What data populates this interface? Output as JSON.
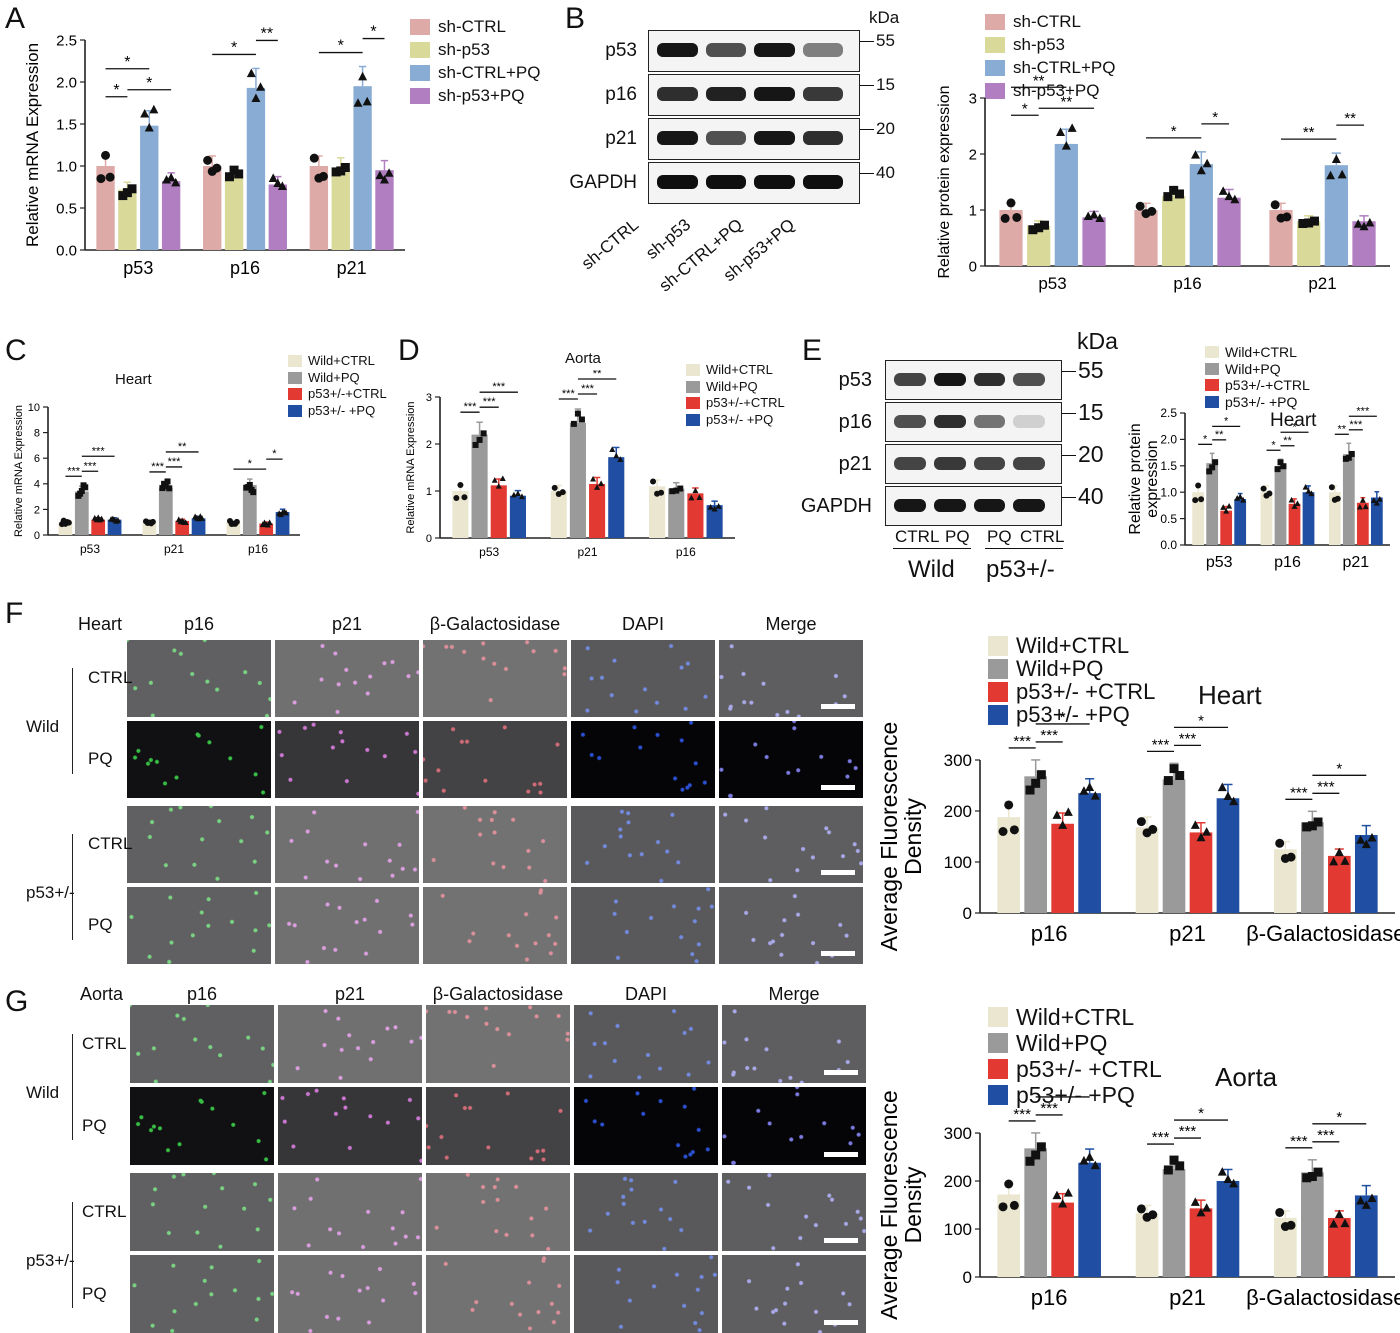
{
  "colors": {
    "pink": "#deaaa8",
    "olive": "#d9d99a",
    "blue": "#88acd4",
    "purple": "#b27ec2",
    "cream": "#eae6cf",
    "gray": "#9a9a9a",
    "red": "#e23a33",
    "navy": "#1f4ea2"
  },
  "panels": {
    "A": "A",
    "B": "B",
    "C": "C",
    "D": "D",
    "E": "E",
    "F": "F",
    "G": "G"
  },
  "blot_B": {
    "kda": "kDa",
    "rows": [
      {
        "label": "p53",
        "kda": "55"
      },
      {
        "label": "p16",
        "kda": "15"
      },
      {
        "label": "p21",
        "kda": "20"
      },
      {
        "label": "GAPDH",
        "kda": "40"
      }
    ],
    "lanes": [
      "sh-CTRL",
      "sh-p53",
      "sh-CTRL+PQ",
      "sh-p53+PQ"
    ]
  },
  "blot_E": {
    "kda": "kDa",
    "rows": [
      {
        "label": "p53",
        "kda": "55"
      },
      {
        "label": "p16",
        "kda": "15"
      },
      {
        "label": "p21",
        "kda": "20"
      },
      {
        "label": "GAPDH",
        "kda": "40"
      }
    ],
    "lane_labels": [
      "CTRL",
      "PQ",
      "PQ",
      "CTRL"
    ],
    "groups": [
      "Wild",
      "p53+/-"
    ]
  },
  "if_F": {
    "tissue": "Heart",
    "columns": [
      "p16",
      "p21",
      "β-Galactosidase",
      "DAPI",
      "Merge"
    ],
    "groups": [
      "Wild",
      "p53+/-"
    ],
    "rows": [
      "CTRL",
      "PQ",
      "CTRL",
      "PQ"
    ]
  },
  "if_G": {
    "tissue": "Aorta",
    "columns": [
      "p16",
      "p21",
      "β-Galactosidase",
      "DAPI",
      "Merge"
    ],
    "groups": [
      "Wild",
      "p53+/-"
    ],
    "rows": [
      "CTRL",
      "PQ",
      "CTRL",
      "PQ"
    ]
  },
  "chart_data": [
    {
      "panel": "A",
      "type": "bar",
      "categories": [
        "p53",
        "p16",
        "p21"
      ],
      "ylabel": "Relative mRNA Expression",
      "ylim": [
        0,
        2.5
      ],
      "yticks": [
        "0.0",
        "0.5",
        "1.0",
        "1.5",
        "2.0",
        "2.5"
      ],
      "series": [
        {
          "name": "sh-CTRL",
          "values": [
            1.0,
            1.0,
            1.0
          ]
        },
        {
          "name": "sh-p53",
          "values": [
            0.72,
            0.88,
            0.98
          ]
        },
        {
          "name": "sh-CTRL+PQ",
          "values": [
            1.48,
            1.93,
            1.95
          ]
        },
        {
          "name": "sh-p53+PQ",
          "values": [
            0.82,
            0.78,
            0.95
          ]
        }
      ],
      "significance": [
        {
          "category": "p53",
          "labels": [
            "*",
            "*",
            "*"
          ]
        },
        {
          "category": "p16",
          "labels": [
            "*",
            "**"
          ]
        },
        {
          "category": "p21",
          "labels": [
            "*",
            "*"
          ]
        }
      ]
    },
    {
      "panel": "B",
      "type": "bar",
      "categories": [
        "p53",
        "p16",
        "p21"
      ],
      "ylabel": "Relative protein expression",
      "ylim": [
        0,
        3
      ],
      "yticks": [
        "0",
        "1",
        "2",
        "3"
      ],
      "series": [
        {
          "name": "sh-CTRL",
          "values": [
            1.0,
            1.0,
            1.0
          ]
        },
        {
          "name": "sh-p53",
          "values": [
            0.72,
            1.25,
            0.8
          ]
        },
        {
          "name": "sh-CTRL+PQ",
          "values": [
            2.18,
            1.82,
            1.8
          ]
        },
        {
          "name": "sh-p53+PQ",
          "values": [
            0.87,
            1.22,
            0.8
          ]
        }
      ],
      "significance": [
        {
          "category": "p53",
          "labels": [
            "*",
            "**",
            "**"
          ]
        },
        {
          "category": "p16",
          "labels": [
            "*",
            "*"
          ]
        },
        {
          "category": "p21",
          "labels": [
            "**",
            "**"
          ]
        }
      ]
    },
    {
      "panel": "C",
      "type": "bar",
      "title": "Heart",
      "categories": [
        "p53",
        "p21",
        "p16"
      ],
      "ylabel": "Relative mRNA Expression",
      "ylim": [
        0,
        10
      ],
      "yticks": [
        "0",
        "2",
        "4",
        "6",
        "8",
        "10"
      ],
      "series": [
        {
          "name": "Wild+CTRL",
          "values": [
            1.0,
            1.0,
            1.0
          ]
        },
        {
          "name": "Wild+PQ",
          "values": [
            3.4,
            3.7,
            3.9
          ]
        },
        {
          "name": "p53+/-+CTRL",
          "values": [
            1.2,
            1.1,
            0.9
          ]
        },
        {
          "name": "p53+/- +PQ",
          "values": [
            1.2,
            1.3,
            1.8
          ]
        }
      ],
      "significance": [
        {
          "category": "p53",
          "labels": [
            "***",
            "***",
            "***"
          ]
        },
        {
          "category": "p21",
          "labels": [
            "***",
            "***",
            "**"
          ]
        },
        {
          "category": "p16",
          "labels": [
            "*",
            "*"
          ]
        }
      ]
    },
    {
      "panel": "D",
      "type": "bar",
      "title": "Aorta",
      "categories": [
        "p53",
        "p21",
        "p16"
      ],
      "ylabel": "Relative mRNA Expression",
      "ylim": [
        0,
        3
      ],
      "yticks": [
        "0",
        "1",
        "2",
        "3"
      ],
      "series": [
        {
          "name": "Wild+CTRL",
          "values": [
            1.0,
            1.0,
            1.1
          ]
        },
        {
          "name": "Wild+PQ",
          "values": [
            2.2,
            2.45,
            1.05
          ]
        },
        {
          "name": "p53+/-+CTRL",
          "values": [
            1.12,
            1.15,
            0.95
          ]
        },
        {
          "name": "p53+/- +PQ",
          "values": [
            0.9,
            1.72,
            0.7
          ]
        }
      ],
      "significance": [
        {
          "category": "p53",
          "labels": [
            "***",
            "***",
            "***"
          ]
        },
        {
          "category": "p21",
          "labels": [
            "***",
            "***",
            "**"
          ]
        }
      ]
    },
    {
      "panel": "E",
      "type": "bar",
      "title": "Heart",
      "categories": [
        "p53",
        "p16",
        "p21"
      ],
      "ylabel": "Relative protein expression",
      "ylim": [
        0,
        2.5
      ],
      "yticks": [
        "0.0",
        "0.5",
        "1.0",
        "1.5",
        "2.0",
        "2.5"
      ],
      "series": [
        {
          "name": "Wild+CTRL",
          "values": [
            1.0,
            1.0,
            1.0
          ]
        },
        {
          "name": "Wild+PQ",
          "values": [
            1.55,
            1.45,
            1.72
          ]
        },
        {
          "name": "p53+/-+CTRL",
          "values": [
            0.65,
            0.78,
            0.8
          ]
        },
        {
          "name": "p53+/- +PQ",
          "values": [
            0.87,
            1.0,
            0.9
          ]
        }
      ],
      "significance": [
        {
          "category": "p53",
          "labels": [
            "*",
            "**",
            "*"
          ]
        },
        {
          "category": "p16",
          "labels": [
            "*",
            "**",
            "*"
          ]
        },
        {
          "category": "p21",
          "labels": [
            "**",
            "***",
            "***"
          ]
        }
      ]
    },
    {
      "panel": "F",
      "type": "bar",
      "title": "Heart",
      "categories": [
        "p16",
        "p21",
        "β-Galactosidase"
      ],
      "ylabel": "Average Fluorescence Density",
      "ylim": [
        0,
        300
      ],
      "yticks": [
        "0",
        "100",
        "200",
        "300"
      ],
      "series": [
        {
          "name": "Wild+CTRL",
          "values": [
            188,
            168,
            125
          ]
        },
        {
          "name": "Wild+PQ",
          "values": [
            268,
            262,
            178
          ]
        },
        {
          "name": "p53+/- +CTRL",
          "values": [
            175,
            158,
            112
          ]
        },
        {
          "name": "p53+/- +PQ",
          "values": [
            235,
            225,
            153
          ]
        }
      ],
      "significance": [
        {
          "category": "p16",
          "labels": [
            "***",
            "***",
            "*"
          ]
        },
        {
          "category": "p21",
          "labels": [
            "***",
            "***",
            "*"
          ]
        },
        {
          "category": "β-Galactosidase",
          "labels": [
            "***",
            "***",
            "*"
          ]
        }
      ]
    },
    {
      "panel": "G",
      "type": "bar",
      "title": "Aorta",
      "categories": [
        "p16",
        "p21",
        "β-Galactosidase"
      ],
      "ylabel": "Average Fluorescence Density",
      "ylim": [
        0,
        300
      ],
      "yticks": [
        "0",
        "100",
        "200",
        "300"
      ],
      "series": [
        {
          "name": "Wild+CTRL",
          "values": [
            172,
            133,
            123
          ]
        },
        {
          "name": "Wild+PQ",
          "values": [
            268,
            225,
            218
          ]
        },
        {
          "name": "p53+/- +CTRL",
          "values": [
            155,
            143,
            123
          ]
        },
        {
          "name": "p53+/- +PQ",
          "values": [
            238,
            200,
            170
          ]
        }
      ],
      "significance": [
        {
          "category": "p16",
          "labels": [
            "***",
            "***",
            "*"
          ]
        },
        {
          "category": "p21",
          "labels": [
            "***",
            "***",
            "*"
          ]
        },
        {
          "category": "β-Galactosidase",
          "labels": [
            "***",
            "***",
            "*"
          ]
        }
      ]
    }
  ]
}
